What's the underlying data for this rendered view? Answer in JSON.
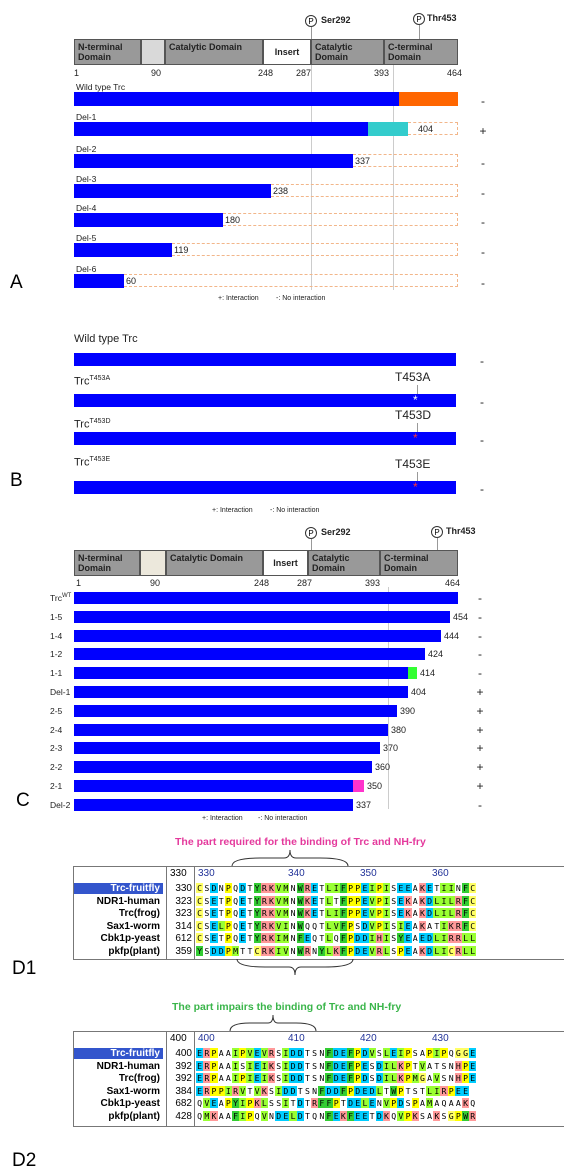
{
  "panels": {
    "a": "A",
    "b": "B",
    "c": "C",
    "d1": "D1",
    "d2": "D2"
  },
  "domain_map": {
    "n_terminal": "N-terminal Domain",
    "catalytic": "Catalytic Domain",
    "insert": "Insert",
    "catalytic2": "Catalytic Domain",
    "c_terminal": "C-terminal Domain",
    "p_symbol": "P",
    "ser292": "Ser292",
    "thr453": "Thr453",
    "positions": [
      "1",
      "90",
      "248",
      "287",
      "393",
      "464"
    ]
  },
  "panel_a": {
    "rows": [
      {
        "label": "Wild type Trc",
        "end": 464,
        "end_label": "",
        "result": "-"
      },
      {
        "label": "Del-1",
        "end": 404,
        "end_label": "404",
        "result": "+"
      },
      {
        "label": "Del-2",
        "end": 337,
        "end_label": "337",
        "result": "-"
      },
      {
        "label": "Del-3",
        "end": 238,
        "end_label": "238",
        "result": "-"
      },
      {
        "label": "Del-4",
        "end": 180,
        "end_label": "180",
        "result": "-"
      },
      {
        "label": "Del-5",
        "end": 119,
        "end_label": "119",
        "result": "-"
      },
      {
        "label": "Del-6",
        "end": 60,
        "end_label": "60",
        "result": "-"
      }
    ],
    "legend_plus": "+: Interaction",
    "legend_minus": "-: No interaction"
  },
  "panel_b": {
    "rows": [
      {
        "label": "Wild type Trc",
        "sup": "",
        "mut": "",
        "result": "-"
      },
      {
        "label": "Trc",
        "sup": "T453A",
        "mut": "T453A",
        "result": "-"
      },
      {
        "label": "Trc",
        "sup": "T453D",
        "mut": "T453D",
        "result": "-"
      },
      {
        "label": "Trc",
        "sup": "T453E",
        "mut": "T453E",
        "result": "-"
      }
    ],
    "legend_plus": "+: Interaction",
    "legend_minus": "-: No interaction"
  },
  "panel_c": {
    "rows": [
      {
        "label": "Trc",
        "sup": "WT",
        "end": 464,
        "end_label": "",
        "result": "-"
      },
      {
        "label": "1-5",
        "sup": "",
        "end": 454,
        "end_label": "454",
        "result": "-"
      },
      {
        "label": "1-4",
        "sup": "",
        "end": 444,
        "end_label": "444",
        "result": "-"
      },
      {
        "label": "1-2",
        "sup": "",
        "end": 424,
        "end_label": "424",
        "result": "-"
      },
      {
        "label": "1-1",
        "sup": "",
        "end": 414,
        "end_label": "414",
        "result": "-"
      },
      {
        "label": "Del-1",
        "sup": "",
        "end": 404,
        "end_label": "404",
        "result": "+"
      },
      {
        "label": "2-5",
        "sup": "",
        "end": 390,
        "end_label": "390",
        "result": "+"
      },
      {
        "label": "2-4",
        "sup": "",
        "end": 380,
        "end_label": "380",
        "result": "+"
      },
      {
        "label": "2-3",
        "sup": "",
        "end": 370,
        "end_label": "370",
        "result": "+"
      },
      {
        "label": "2-2",
        "sup": "",
        "end": 360,
        "end_label": "360",
        "result": "+"
      },
      {
        "label": "2-1",
        "sup": "",
        "end": 350,
        "end_label": "350",
        "result": "+"
      },
      {
        "label": "Del-2",
        "sup": "",
        "end": 337,
        "end_label": "337",
        "result": "-"
      }
    ],
    "legend_plus": "+: Interaction",
    "legend_minus": "-: No interaction"
  },
  "colors": {
    "bar": "#0000ff",
    "orange": "#ff6600",
    "cyan": "#33cccc",
    "green": "#33ff33",
    "magenta": "#ff33cc",
    "dashed": "#f2b68a"
  },
  "d1": {
    "title": "The part required for the binding of Trc and NH-fry",
    "ruler_start": "330",
    "ruler": [
      "330",
      "340",
      "350",
      "360"
    ],
    "rows": [
      {
        "name": "Trc-fruitfly",
        "num": "330",
        "seq": "CSDNPQDTYRKVMNWRETLIFPPEIPISEEAKETIINFC"
      },
      {
        "name": "NDR1-human",
        "num": "323",
        "seq": "CSETPQETYRKVMNWKETLTFPPEVPISEKAKDLILRFC"
      },
      {
        "name": "Trc(frog)",
        "num": "323",
        "seq": "CSETPQETYRKVMNWKETLIFPPEVPISEKAKDLILRFC"
      },
      {
        "name": "Sax1-worm",
        "num": "314",
        "seq": "CSELPQETYRKVINWQQTLVFPSDVPISIEAKATIKRFC"
      },
      {
        "name": "Cbk1p-yeast",
        "num": "612",
        "seq": "CSETPQETYRKIMNFEQTLQFPDDIHISYEAEDLIRRLL"
      },
      {
        "name": "pkfp(plant)",
        "num": "359",
        "seq": "YSDDPMTTCRKIVNWRNYLKFPDEVRLSPEAKDLICRLL"
      }
    ]
  },
  "d2": {
    "title": "The part impairs the binding of Trc and NH-fry",
    "ruler_start": "400",
    "ruler": [
      "400",
      "410",
      "420",
      "430"
    ],
    "rows": [
      {
        "name": "Trc-fruitfly",
        "num": "400",
        "seq": "ERPAAIPVEVRSIDDTSNFDEFPDVSLEIPSAPIPQGGE"
      },
      {
        "name": "NDR1-human",
        "num": "392",
        "seq": "ERPAAISIEIKSIDDTSNFDEFPESDILKPTVATSNHPE"
      },
      {
        "name": "Trc(frog)",
        "num": "392",
        "seq": "ERPAAIPIEIKSIDDTSNFDEFPDSDILKPMGAVSNHPE"
      },
      {
        "name": "Sax1-worm",
        "num": "384",
        "seq": "ERPPIRVTVKSIDDTSNFDDFPDEDLTWPTSTLIRPEE"
      },
      {
        "name": "Cbk1p-yeast",
        "num": "682",
        "seq": "QVEAPYIPKLSSITDTRFFPTDELENVPDSPAMAQAAKQ"
      },
      {
        "name": "pkfp(plant)",
        "num": "428",
        "seq": "QMKAAFIPQVNDELDTQNFEKFEETDKQVPKSAKSGPWR"
      }
    ]
  }
}
